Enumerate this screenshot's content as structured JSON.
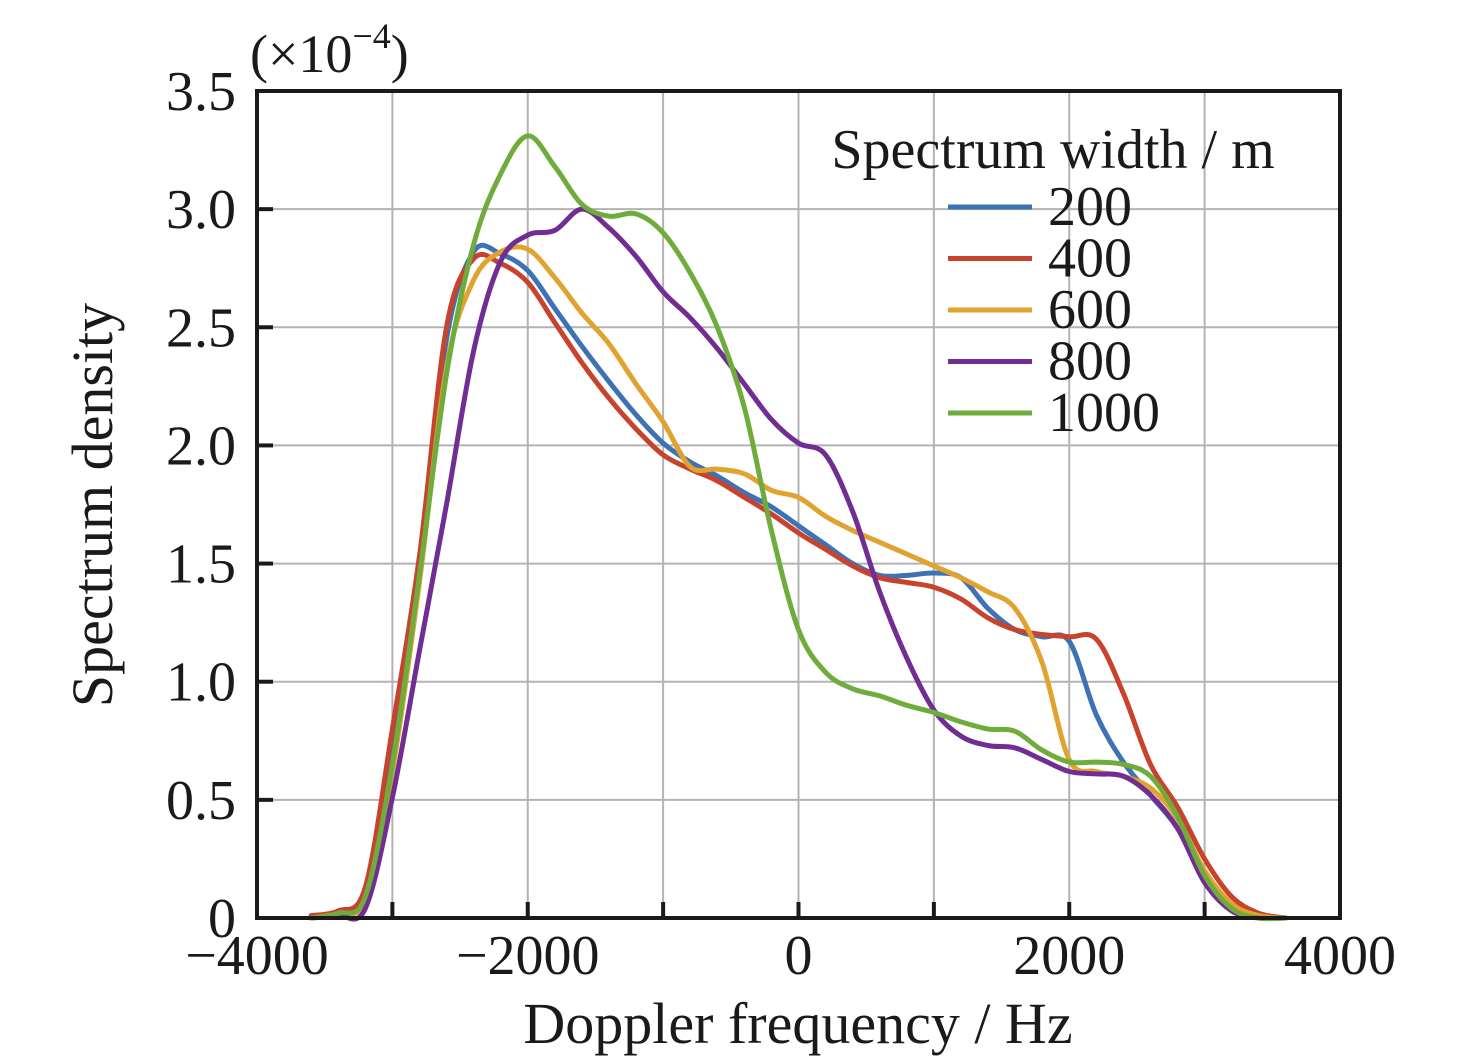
{
  "figure": {
    "offset_prefix": "(×10",
    "offset_exponent": "−4",
    "offset_suffix": ")"
  },
  "chart_data": {
    "type": "line",
    "xlabel": "Doppler frequency / Hz",
    "ylabel": "Spectrum density",
    "y_unit_multiplier": "(×10−4)",
    "xlim": [
      -4000,
      4000
    ],
    "ylim": [
      0,
      3.5
    ],
    "x_tick_values": [
      -4000,
      -2000,
      0,
      2000,
      4000
    ],
    "x_tick_labels": [
      "−4000",
      "−2000",
      "0",
      "2000",
      "4000"
    ],
    "y_tick_values": [
      0,
      0.5,
      1.0,
      1.5,
      2.0,
      2.5,
      3.0,
      3.5
    ],
    "y_tick_labels": [
      "0",
      "0.5",
      "1.0",
      "1.5",
      "2.0",
      "2.5",
      "3.0",
      "3.5"
    ],
    "grid": true,
    "grid_x_step": 1000,
    "grid_y_step": 0.5,
    "legend_title": "Spectrum width / m",
    "legend_position": "upper right",
    "axis_color": "#1a1a1a",
    "grid_color": "#b3b3b3",
    "x": [
      -3600,
      -3400,
      -3200,
      -3000,
      -2800,
      -2600,
      -2400,
      -2200,
      -2000,
      -1800,
      -1600,
      -1400,
      -1200,
      -1000,
      -800,
      -600,
      -400,
      -200,
      0,
      200,
      400,
      600,
      800,
      1000,
      1200,
      1400,
      1600,
      1800,
      2000,
      2200,
      2400,
      2600,
      2800,
      3000,
      3200,
      3400,
      3600
    ],
    "series": [
      {
        "name": "200",
        "color": "#3d72b4",
        "values": [
          0,
          0.02,
          0.1,
          0.72,
          1.48,
          2.45,
          2.82,
          2.81,
          2.74,
          2.58,
          2.42,
          2.27,
          2.13,
          2.01,
          1.93,
          1.87,
          1.8,
          1.74,
          1.66,
          1.58,
          1.5,
          1.45,
          1.45,
          1.46,
          1.44,
          1.31,
          1.22,
          1.19,
          1.17,
          0.86,
          0.66,
          0.52,
          0.38,
          0.17,
          0.04,
          0.01,
          0
        ]
      },
      {
        "name": "400",
        "color": "#c8432e",
        "values": [
          0.01,
          0.03,
          0.13,
          0.8,
          1.53,
          2.5,
          2.79,
          2.77,
          2.69,
          2.52,
          2.35,
          2.2,
          2.07,
          1.96,
          1.9,
          1.85,
          1.78,
          1.71,
          1.63,
          1.56,
          1.49,
          1.44,
          1.42,
          1.4,
          1.35,
          1.27,
          1.22,
          1.2,
          1.19,
          1.18,
          0.95,
          0.65,
          0.47,
          0.25,
          0.09,
          0.02,
          0
        ]
      },
      {
        "name": "600",
        "color": "#e0a32f",
        "values": [
          0,
          0.02,
          0.08,
          0.62,
          1.42,
          2.33,
          2.7,
          2.82,
          2.83,
          2.71,
          2.56,
          2.43,
          2.26,
          2.1,
          1.91,
          1.9,
          1.88,
          1.81,
          1.78,
          1.7,
          1.64,
          1.59,
          1.54,
          1.49,
          1.44,
          1.38,
          1.31,
          1.08,
          0.67,
          0.62,
          0.6,
          0.55,
          0.42,
          0.2,
          0.06,
          0.01,
          0
        ]
      },
      {
        "name": "800",
        "color": "#712d91",
        "values": [
          0,
          0.01,
          0.04,
          0.51,
          1.13,
          1.75,
          2.4,
          2.78,
          2.89,
          2.91,
          3.0,
          2.92,
          2.8,
          2.65,
          2.54,
          2.41,
          2.26,
          2.11,
          2.01,
          1.96,
          1.72,
          1.38,
          1.1,
          0.88,
          0.77,
          0.73,
          0.72,
          0.67,
          0.62,
          0.61,
          0.6,
          0.52,
          0.38,
          0.15,
          0.03,
          0,
          0
        ]
      },
      {
        "name": "1000",
        "color": "#6fac3c",
        "values": [
          0,
          0.02,
          0.09,
          0.65,
          1.45,
          2.3,
          2.85,
          3.15,
          3.31,
          3.18,
          3.02,
          2.97,
          2.98,
          2.9,
          2.73,
          2.5,
          2.16,
          1.64,
          1.22,
          1.04,
          0.97,
          0.94,
          0.9,
          0.87,
          0.83,
          0.8,
          0.79,
          0.71,
          0.66,
          0.66,
          0.65,
          0.6,
          0.43,
          0.18,
          0.04,
          0,
          0
        ]
      }
    ]
  }
}
